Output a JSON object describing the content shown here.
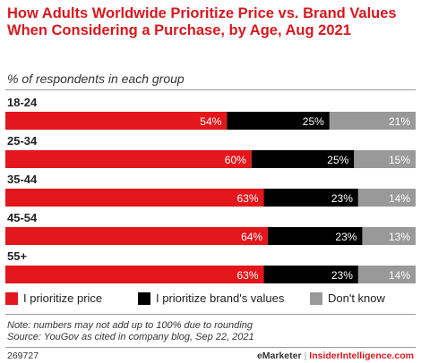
{
  "title": "How Adults Worldwide Prioritize Price vs. Brand Values When Considering a Purchase, by Age, Aug 2021",
  "subtitle": "% of respondents in each group",
  "colors": {
    "price": "#e3161c",
    "brand": "#000000",
    "dontknow": "#999999",
    "accent": "#d71920"
  },
  "chart_data": {
    "type": "bar",
    "orientation": "horizontal",
    "stacked": true,
    "categories": [
      "18-24",
      "25-34",
      "35-44",
      "45-54",
      "55+"
    ],
    "series": [
      {
        "name": "I prioritize price",
        "values": [
          54,
          60,
          63,
          64,
          63
        ]
      },
      {
        "name": "I prioritize brand's values",
        "values": [
          25,
          25,
          23,
          23,
          23
        ]
      },
      {
        "name": "Don't know",
        "values": [
          21,
          15,
          14,
          13,
          14
        ]
      }
    ],
    "value_suffix": "%",
    "legend_position": "bottom"
  },
  "legend": {
    "price": "I prioritize price",
    "brand": "I prioritize brand's values",
    "dontknow": "Don't know"
  },
  "notes": [
    "Note: numbers may not add up to 100% due to rounding",
    "Source: YouGov as cited in company blog, Sep 22, 2021"
  ],
  "footer": {
    "id": "269727",
    "brand_left": "eMarketer",
    "separator": "|",
    "brand_right": "InsiderIntelligence.com"
  }
}
